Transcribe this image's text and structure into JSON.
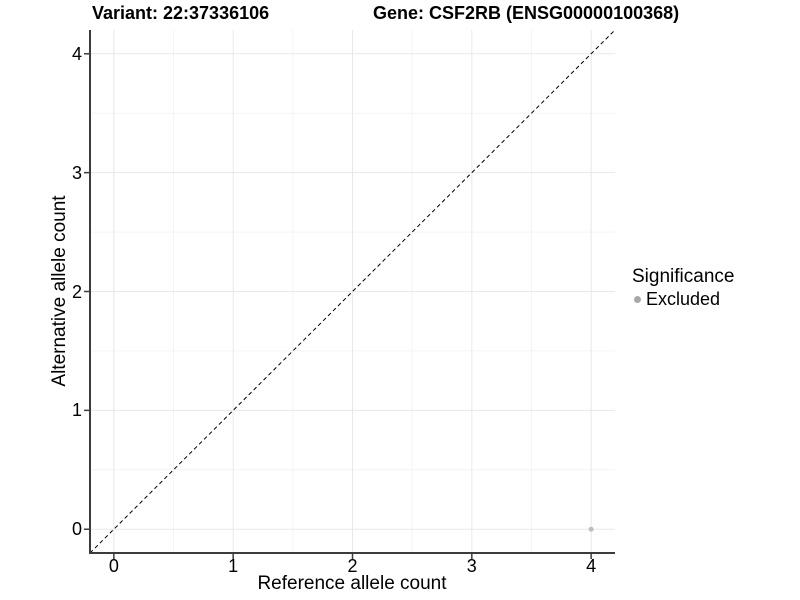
{
  "chart_data": {
    "type": "scatter",
    "title_left": "Variant: 22:37336106",
    "title_right": "Gene: CSF2RB (ENSG00000100368)",
    "xlabel": "Reference allele count",
    "ylabel": "Alternative allele count",
    "xlim": [
      -0.2,
      4.2
    ],
    "ylim": [
      -0.2,
      4.2
    ],
    "x_ticks": [
      0,
      1,
      2,
      3,
      4
    ],
    "y_ticks": [
      0,
      1,
      2,
      3,
      4
    ],
    "x_minor_ticks": [
      0.5,
      1.5,
      2.5,
      3.5
    ],
    "y_minor_ticks": [
      0.5,
      1.5,
      2.5,
      3.5
    ],
    "grid": "major and minor gridlines on white background",
    "identity_line": {
      "style": "dashed",
      "color": "#000000",
      "from": [
        -0.2,
        -0.2
      ],
      "to": [
        4.2,
        4.2
      ]
    },
    "series": [
      {
        "name": "Excluded",
        "color": "#bcbcbc",
        "point_radius": 2.5,
        "points": [
          [
            4,
            0
          ]
        ]
      }
    ],
    "legend": {
      "title": "Significance",
      "position": "right",
      "entries": [
        {
          "label": "Excluded",
          "color": "#a8a8a8"
        }
      ]
    }
  },
  "colors": {
    "background": "#ffffff",
    "axis_line": "#3c3c3c",
    "tick_mark": "#3c3c3c",
    "grid_major": "#e8e8e8",
    "grid_minor": "#f4f4f4",
    "text": "#000000"
  }
}
